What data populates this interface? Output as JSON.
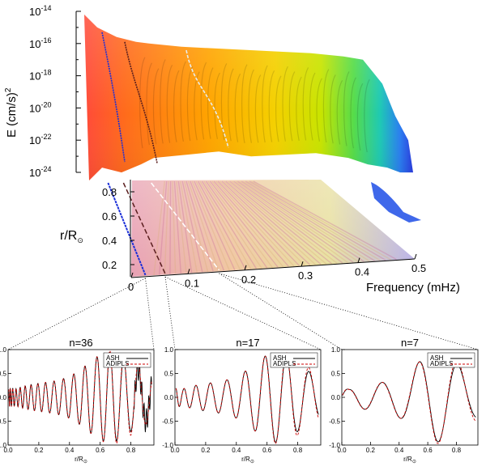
{
  "chart_data": [
    {
      "type": "area",
      "title": "",
      "ylabel_base": "E (cm/s)",
      "ylabel_sup": "2",
      "yticks": [
        {
          "base": "10",
          "exp": "-14"
        },
        {
          "base": "10",
          "exp": "-16"
        },
        {
          "base": "10",
          "exp": "-18"
        },
        {
          "base": "10",
          "exp": "-20"
        },
        {
          "base": "10",
          "exp": "-22"
        },
        {
          "base": "10",
          "exp": "-24"
        }
      ],
      "ylim_exp": [
        -24,
        -14
      ],
      "xlabel": "Frequency (mHz)",
      "xticks": [
        "0",
        "0.1",
        "0.2",
        "0.3",
        "0.4",
        "0.5"
      ],
      "xlim": [
        0,
        0.5
      ],
      "rlabel_base": "r/R",
      "rlabel_sub": "⊙",
      "rticks": [
        "0.8",
        "0.6",
        "0.4",
        "0.2"
      ],
      "rlim": [
        0.1,
        0.9
      ],
      "highlighted_modes": [
        {
          "n": "36",
          "frequency": 0.025,
          "color": "#1a2ed8"
        },
        {
          "n": "17",
          "frequency": 0.06,
          "color": "#5a1e1e"
        },
        {
          "n": "7",
          "frequency": 0.155,
          "color": "#e8ecec"
        }
      ],
      "spectrum_envelope": {
        "frequency": [
          0.0,
          0.02,
          0.05,
          0.08,
          0.1,
          0.15,
          0.2,
          0.25,
          0.3,
          0.35,
          0.4,
          0.43,
          0.46,
          0.48,
          0.5
        ],
        "log_energy_top": [
          -14.2,
          -15.0,
          -15.6,
          -15.9,
          -16.0,
          -16.2,
          -16.3,
          -16.4,
          -16.5,
          -16.6,
          -16.8,
          -17.0,
          -18.5,
          -20.5,
          -22.0
        ],
        "log_energy_floor": [
          -24.0,
          -23.2,
          -23.5,
          -23.0,
          -22.6,
          -22.4,
          -22.2,
          -22.5,
          -22.4,
          -22.3,
          -22.6,
          -23.0,
          -23.2,
          -23.5,
          -23.5
        ]
      }
    },
    {
      "type": "line",
      "title": "n=36",
      "xlabel_base": "r/R",
      "xlabel_sub": "⊙",
      "xlim": [
        0.0,
        0.95
      ],
      "ylim": [
        -1.0,
        1.0
      ],
      "xticks": [
        "0.0",
        "0.2",
        "0.4",
        "0.6",
        "0.8"
      ],
      "yticks": [
        "1.0",
        "0.5",
        "0.0",
        "-0.5",
        "-1.0"
      ],
      "legend": [
        "ASH",
        "ADIPLS"
      ],
      "n": 36,
      "asym": 0.14,
      "bias": 0.5,
      "series": [
        {
          "name": "ASH",
          "color": "#000000",
          "dash": "none"
        },
        {
          "name": "ADIPLS",
          "color": "#cc0000",
          "dash": "3,2"
        }
      ]
    },
    {
      "type": "line",
      "title": "n=17",
      "xlabel_base": "r/R",
      "xlabel_sub": "⊙",
      "xlim": [
        0.0,
        0.95
      ],
      "ylim": [
        -1.0,
        1.0
      ],
      "xticks": [
        "0.0",
        "0.2",
        "0.4",
        "0.6",
        "0.8"
      ],
      "yticks": [
        "1.0",
        "0.5",
        "0.0",
        "-0.5",
        "-1.0"
      ],
      "legend": [
        "ASH",
        "ADIPLS"
      ],
      "n": 17,
      "asym": 0.15,
      "bias": 0.7,
      "series": [
        {
          "name": "ASH",
          "color": "#000000",
          "dash": "none"
        },
        {
          "name": "ADIPLS",
          "color": "#cc0000",
          "dash": "3,2"
        }
      ]
    },
    {
      "type": "line",
      "title": "n=7",
      "xlabel_base": "r/R",
      "xlabel_sub": "⊙",
      "xlim": [
        0.0,
        0.95
      ],
      "ylim": [
        -1.0,
        1.0
      ],
      "xticks": [
        "0.0",
        "0.2",
        "0.4",
        "0.6",
        "0.8"
      ],
      "yticks": [
        "1.0",
        "0.5",
        "0.0",
        "-0.5",
        "-1.0"
      ],
      "legend": [
        "ASH",
        "ADIPLS"
      ],
      "n": 7,
      "asym": 0.18,
      "bias": 0.9,
      "series": [
        {
          "name": "ASH",
          "color": "#000000",
          "dash": "none"
        },
        {
          "name": "ADIPLS",
          "color": "#cc0000",
          "dash": "3,2"
        }
      ]
    }
  ]
}
